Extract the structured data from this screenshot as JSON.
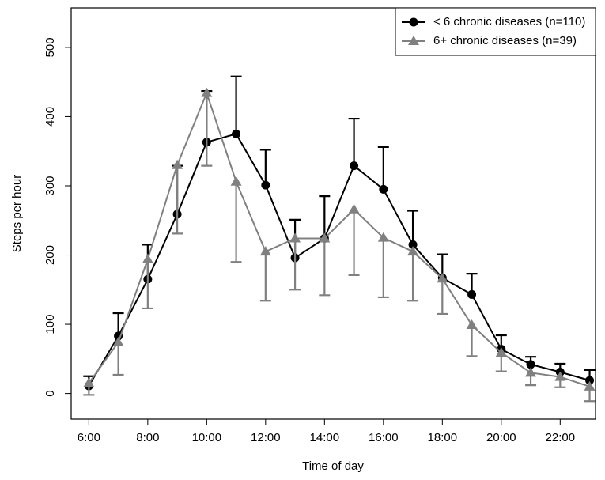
{
  "chart_data": {
    "type": "line",
    "x_label": "Time of day",
    "y_label": "Steps per hour",
    "x": [
      6,
      7,
      8,
      9,
      10,
      11,
      12,
      13,
      14,
      15,
      16,
      17,
      18,
      19,
      20,
      21,
      22,
      23
    ],
    "xlim": [
      5.4,
      23.2
    ],
    "xticks": [
      {
        "value": 6,
        "label": "6:00"
      },
      {
        "value": 8,
        "label": "8:00"
      },
      {
        "value": 10,
        "label": "10:00"
      },
      {
        "value": 12,
        "label": "12:00"
      },
      {
        "value": 14,
        "label": "14:00"
      },
      {
        "value": 16,
        "label": "16:00"
      },
      {
        "value": 18,
        "label": "18:00"
      },
      {
        "value": 20,
        "label": "20:00"
      },
      {
        "value": 22,
        "label": "22:00"
      }
    ],
    "ylim": [
      -37,
      557
    ],
    "yticks": [
      0,
      100,
      200,
      300,
      400,
      500
    ],
    "legend_position": "top-right",
    "series": [
      {
        "name": "< 6 chronic diseases (n=110)",
        "color": "#000000",
        "marker": "circle",
        "error_bar": "up",
        "values": [
          11,
          83,
          165,
          259,
          363,
          375,
          301,
          196,
          224,
          329,
          295,
          215,
          167,
          143,
          64,
          42,
          31,
          19
        ],
        "errors": [
          14,
          33,
          50,
          70,
          74,
          83,
          51,
          55,
          61,
          68,
          61,
          49,
          34,
          30,
          20,
          11,
          12,
          15
        ]
      },
      {
        "name": "6+ chronic diseases (n=39)",
        "color": "#808080",
        "marker": "triangle",
        "error_bar": "down",
        "values": [
          15,
          74,
          194,
          330,
          434,
          306,
          205,
          224,
          224,
          266,
          225,
          205,
          166,
          99,
          59,
          30,
          24,
          10
        ],
        "errors": [
          17,
          47,
          71,
          99,
          105,
          116,
          71,
          74,
          82,
          95,
          86,
          71,
          51,
          45,
          27,
          18,
          15,
          21
        ]
      }
    ]
  }
}
